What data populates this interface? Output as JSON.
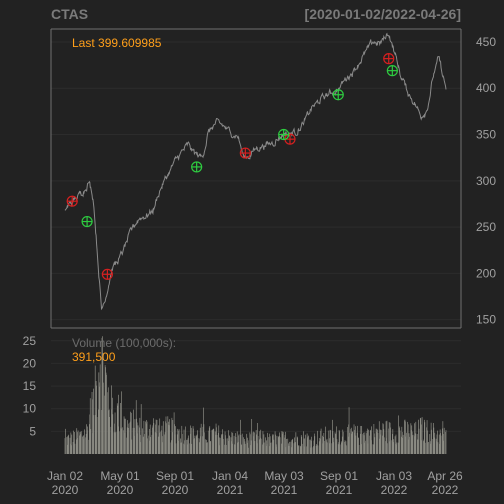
{
  "chart_data": {
    "type": "line",
    "symbol": "CTAS",
    "date_range": "[2020-01-02/2022-04-26]",
    "last_label": "Last 399.609985",
    "volume_label": "Volume (100,000s):",
    "volume_last": "391,500",
    "x_tick_labels": [
      {
        "month": "Jan 02",
        "year": "2020"
      },
      {
        "month": "May 01",
        "year": "2020"
      },
      {
        "month": "Sep 01",
        "year": "2020"
      },
      {
        "month": "Jan 04",
        "year": "2021"
      },
      {
        "month": "May 03",
        "year": "2021"
      },
      {
        "month": "Sep 01",
        "year": "2021"
      },
      {
        "month": "Jan 03",
        "year": "2022"
      },
      {
        "month": "Apr 26",
        "year": "2022"
      }
    ],
    "price_axis": {
      "ticks": [
        150,
        200,
        250,
        300,
        350,
        400,
        450
      ],
      "ylim": [
        141,
        464
      ]
    },
    "volume_axis": {
      "ticks": [
        5,
        10,
        15,
        20,
        25
      ],
      "ylim": [
        0,
        26.5
      ]
    },
    "price_series": [
      [
        "2020-01-02",
        270
      ],
      [
        "2020-01-15",
        276
      ],
      [
        "2020-02-01",
        283
      ],
      [
        "2020-02-15",
        292
      ],
      [
        "2020-02-24",
        300
      ],
      [
        "2020-03-05",
        280
      ],
      [
        "2020-03-12",
        235
      ],
      [
        "2020-03-23",
        160
      ],
      [
        "2020-04-01",
        175
      ],
      [
        "2020-04-15",
        205
      ],
      [
        "2020-05-01",
        215
      ],
      [
        "2020-05-15",
        230
      ],
      [
        "2020-06-01",
        250
      ],
      [
        "2020-06-15",
        260
      ],
      [
        "2020-07-01",
        263
      ],
      [
        "2020-07-15",
        268
      ],
      [
        "2020-08-01",
        292
      ],
      [
        "2020-08-15",
        305
      ],
      [
        "2020-09-01",
        320
      ],
      [
        "2020-09-15",
        330
      ],
      [
        "2020-10-01",
        338
      ],
      [
        "2020-10-15",
        330
      ],
      [
        "2020-11-01",
        325
      ],
      [
        "2020-11-15",
        352
      ],
      [
        "2020-12-01",
        362
      ],
      [
        "2020-12-15",
        360
      ],
      [
        "2021-01-04",
        352
      ],
      [
        "2021-01-20",
        348
      ],
      [
        "2021-02-01",
        325
      ],
      [
        "2021-02-15",
        328
      ],
      [
        "2021-03-01",
        335
      ],
      [
        "2021-03-15",
        338
      ],
      [
        "2021-04-01",
        340
      ],
      [
        "2021-04-15",
        345
      ],
      [
        "2021-05-03",
        352
      ],
      [
        "2021-05-15",
        350
      ],
      [
        "2021-06-01",
        355
      ],
      [
        "2021-06-15",
        362
      ],
      [
        "2021-07-01",
        378
      ],
      [
        "2021-07-15",
        384
      ],
      [
        "2021-08-01",
        392
      ],
      [
        "2021-08-15",
        395
      ],
      [
        "2021-09-01",
        400
      ],
      [
        "2021-09-15",
        410
      ],
      [
        "2021-10-01",
        418
      ],
      [
        "2021-10-15",
        428
      ],
      [
        "2021-11-01",
        440
      ],
      [
        "2021-11-15",
        450
      ],
      [
        "2021-12-01",
        448
      ],
      [
        "2021-12-20",
        460
      ],
      [
        "2022-01-03",
        437
      ],
      [
        "2022-01-15",
        415
      ],
      [
        "2022-02-01",
        395
      ],
      [
        "2022-02-15",
        385
      ],
      [
        "2022-03-01",
        370
      ],
      [
        "2022-03-15",
        378
      ],
      [
        "2022-04-01",
        420
      ],
      [
        "2022-04-10",
        432
      ],
      [
        "2022-04-26",
        399.61
      ]
    ],
    "buy_signals": [
      [
        "2020-02-20",
        256
      ],
      [
        "2020-10-20",
        315
      ],
      [
        "2021-05-01",
        350
      ],
      [
        "2021-08-30",
        393
      ],
      [
        "2021-12-28",
        419
      ]
    ],
    "sell_signals": [
      [
        "2020-01-18",
        278
      ],
      [
        "2020-04-05",
        199
      ],
      [
        "2021-02-05",
        330
      ],
      [
        "2021-05-15",
        345
      ],
      [
        "2021-12-20",
        432
      ]
    ],
    "volume_series": [
      [
        "2020-01-02",
        3.0
      ],
      [
        "2020-01-20",
        3.5
      ],
      [
        "2020-02-05",
        4.0
      ],
      [
        "2020-02-20",
        5.0
      ],
      [
        "2020-03-01",
        9.0
      ],
      [
        "2020-03-12",
        14.0
      ],
      [
        "2020-03-20",
        22.0
      ],
      [
        "2020-03-27",
        20.0
      ],
      [
        "2020-04-05",
        13.0
      ],
      [
        "2020-04-20",
        8.0
      ],
      [
        "2020-05-01",
        9.0
      ],
      [
        "2020-05-15",
        6.0
      ],
      [
        "2020-06-01",
        6.5
      ],
      [
        "2020-06-15",
        5.5
      ],
      [
        "2020-07-01",
        5.5
      ],
      [
        "2020-07-20",
        6.0
      ],
      [
        "2020-08-01",
        5.0
      ],
      [
        "2020-08-15",
        5.5
      ],
      [
        "2020-09-01",
        5.0
      ],
      [
        "2020-09-15",
        4.5
      ],
      [
        "2020-10-01",
        4.5
      ],
      [
        "2020-10-20",
        4.0
      ],
      [
        "2020-11-01",
        4.5
      ],
      [
        "2020-11-15",
        4.0
      ],
      [
        "2020-12-01",
        4.5
      ],
      [
        "2020-12-15",
        4.0
      ],
      [
        "2021-01-04",
        3.5
      ],
      [
        "2021-01-20",
        3.5
      ],
      [
        "2021-02-01",
        3.0
      ],
      [
        "2021-02-15",
        3.0
      ],
      [
        "2021-03-01",
        3.5
      ],
      [
        "2021-03-15",
        3.5
      ],
      [
        "2021-04-01",
        3.0
      ],
      [
        "2021-04-15",
        3.0
      ],
      [
        "2021-05-03",
        3.5
      ],
      [
        "2021-05-15",
        3.0
      ],
      [
        "2021-06-01",
        3.5
      ],
      [
        "2021-06-15",
        3.5
      ],
      [
        "2021-07-01",
        3.0
      ],
      [
        "2021-07-15",
        3.5
      ],
      [
        "2021-08-01",
        4.0
      ],
      [
        "2021-08-15",
        3.5
      ],
      [
        "2021-09-01",
        4.5
      ],
      [
        "2021-09-15",
        4.0
      ],
      [
        "2021-10-01",
        4.5
      ],
      [
        "2021-10-15",
        4.0
      ],
      [
        "2021-11-01",
        4.5
      ],
      [
        "2021-11-15",
        4.5
      ],
      [
        "2021-12-01",
        5.0
      ],
      [
        "2021-12-15",
        5.0
      ],
      [
        "2022-01-03",
        4.5
      ],
      [
        "2022-01-15",
        5.0
      ],
      [
        "2022-02-01",
        5.0
      ],
      [
        "2022-02-15",
        4.5
      ],
      [
        "2022-03-01",
        5.5
      ],
      [
        "2022-03-15",
        5.0
      ],
      [
        "2022-04-01",
        4.5
      ],
      [
        "2022-04-15",
        4.0
      ],
      [
        "2022-04-26",
        3.9
      ]
    ],
    "colors": {
      "background": "#222222",
      "price_line": "#8a8a8a",
      "volume_bars": "#8c8c84",
      "axis_text": "#a0a0a0",
      "title_text": "#7a7a7a",
      "accent": "#ff9f1a",
      "buy_marker": "#2ecc40",
      "sell_marker": "#d62020",
      "frame": "#707070",
      "grid": "#2c2c2c"
    },
    "grid": true
  }
}
